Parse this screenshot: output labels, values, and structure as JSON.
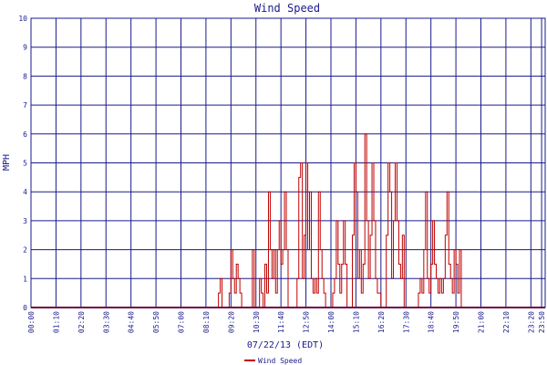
{
  "chart_data": {
    "type": "line",
    "title": "Wind Speed",
    "xlabel": "07/22/13 (EDT)",
    "ylabel": "MPH",
    "ylim": [
      0,
      10
    ],
    "yticks": [
      "0",
      "1",
      "2",
      "3",
      "4",
      "5",
      "6",
      "7",
      "8",
      "9",
      "10"
    ],
    "xticks": [
      "00:00",
      "01:10",
      "02:20",
      "03:30",
      "04:40",
      "05:50",
      "07:00",
      "08:10",
      "09:20",
      "10:30",
      "11:40",
      "12:50",
      "14:00",
      "15:10",
      "16:20",
      "17:30",
      "18:40",
      "19:50",
      "21:00",
      "22:10",
      "23:20",
      "23:50"
    ],
    "grid": true,
    "legend_position": "bottom-left",
    "colors": {
      "series": "#c00000",
      "grid": "#1a1a8c",
      "text": "#1a1a8c",
      "background": "#ffffff"
    },
    "series": [
      {
        "name": "Wind Speed",
        "points": [
          [
            "08:45",
            0.5
          ],
          [
            "08:50",
            1.0
          ],
          [
            "08:55",
            0.0
          ],
          [
            "09:15",
            0.5
          ],
          [
            "09:20",
            2.0
          ],
          [
            "09:25",
            1.0
          ],
          [
            "09:30",
            0.5
          ],
          [
            "09:35",
            1.5
          ],
          [
            "09:40",
            1.0
          ],
          [
            "09:45",
            0.5
          ],
          [
            "09:50",
            0.0
          ],
          [
            "10:20",
            2.0
          ],
          [
            "10:25",
            0.0
          ],
          [
            "10:40",
            1.0
          ],
          [
            "10:45",
            0.5
          ],
          [
            "10:50",
            0.0
          ],
          [
            "10:55",
            1.5
          ],
          [
            "11:00",
            0.5
          ],
          [
            "11:05",
            4.0
          ],
          [
            "11:10",
            2.0
          ],
          [
            "11:15",
            1.0
          ],
          [
            "11:20",
            2.0
          ],
          [
            "11:25",
            0.5
          ],
          [
            "11:30",
            2.0
          ],
          [
            "11:35",
            3.0
          ],
          [
            "11:40",
            1.5
          ],
          [
            "11:45",
            2.0
          ],
          [
            "11:50",
            4.0
          ],
          [
            "11:55",
            2.0
          ],
          [
            "12:00",
            0.0
          ],
          [
            "12:25",
            1.0
          ],
          [
            "12:30",
            4.5
          ],
          [
            "12:35",
            5.0
          ],
          [
            "12:40",
            1.0
          ],
          [
            "12:45",
            2.5
          ],
          [
            "12:50",
            5.0
          ],
          [
            "12:55",
            2.0
          ],
          [
            "13:00",
            4.0
          ],
          [
            "13:05",
            1.0
          ],
          [
            "13:10",
            0.5
          ],
          [
            "13:15",
            1.0
          ],
          [
            "13:20",
            0.5
          ],
          [
            "13:25",
            4.0
          ],
          [
            "13:30",
            2.0
          ],
          [
            "13:35",
            1.0
          ],
          [
            "13:40",
            0.5
          ],
          [
            "13:45",
            0.0
          ],
          [
            "14:05",
            0.5
          ],
          [
            "14:10",
            1.0
          ],
          [
            "14:15",
            3.0
          ],
          [
            "14:20",
            1.5
          ],
          [
            "14:25",
            0.5
          ],
          [
            "14:30",
            1.5
          ],
          [
            "14:35",
            3.0
          ],
          [
            "14:40",
            1.5
          ],
          [
            "14:45",
            0.0
          ],
          [
            "15:00",
            2.5
          ],
          [
            "15:05",
            5.0
          ],
          [
            "15:10",
            4.0
          ],
          [
            "15:15",
            1.0
          ],
          [
            "15:20",
            2.0
          ],
          [
            "15:25",
            0.5
          ],
          [
            "15:30",
            1.5
          ],
          [
            "15:35",
            6.0
          ],
          [
            "15:40",
            3.0
          ],
          [
            "15:45",
            1.0
          ],
          [
            "15:50",
            2.5
          ],
          [
            "15:55",
            5.0
          ],
          [
            "16:00",
            3.0
          ],
          [
            "16:05",
            1.0
          ],
          [
            "16:10",
            0.5
          ],
          [
            "16:15",
            0.5
          ],
          [
            "16:20",
            0.0
          ],
          [
            "16:35",
            2.5
          ],
          [
            "16:40",
            5.0
          ],
          [
            "16:45",
            4.0
          ],
          [
            "16:50",
            1.0
          ],
          [
            "16:55",
            3.0
          ],
          [
            "17:00",
            5.0
          ],
          [
            "17:05",
            3.0
          ],
          [
            "17:10",
            1.5
          ],
          [
            "17:15",
            1.0
          ],
          [
            "17:20",
            2.5
          ],
          [
            "17:25",
            0.0
          ],
          [
            "18:05",
            0.5
          ],
          [
            "18:10",
            1.0
          ],
          [
            "18:15",
            0.5
          ],
          [
            "18:20",
            2.0
          ],
          [
            "18:25",
            4.0
          ],
          [
            "18:30",
            1.0
          ],
          [
            "18:35",
            0.5
          ],
          [
            "18:40",
            1.5
          ],
          [
            "18:45",
            3.0
          ],
          [
            "18:50",
            1.5
          ],
          [
            "18:55",
            1.0
          ],
          [
            "19:00",
            0.5
          ],
          [
            "19:05",
            1.0
          ],
          [
            "19:10",
            0.5
          ],
          [
            "19:15",
            1.0
          ],
          [
            "19:20",
            2.5
          ],
          [
            "19:25",
            4.0
          ],
          [
            "19:30",
            1.5
          ],
          [
            "19:35",
            1.0
          ],
          [
            "19:40",
            0.5
          ],
          [
            "19:45",
            2.0
          ],
          [
            "19:50",
            1.5
          ],
          [
            "19:55",
            0.5
          ],
          [
            "20:00",
            2.0
          ],
          [
            "20:05",
            0.0
          ]
        ]
      }
    ]
  }
}
